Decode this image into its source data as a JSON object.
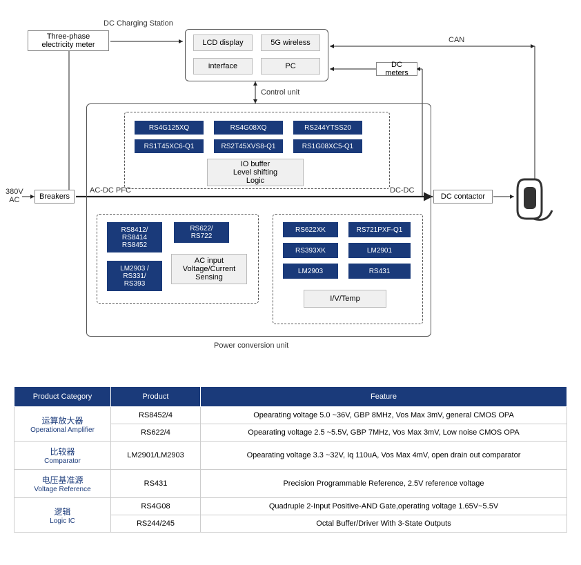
{
  "diagram": {
    "labels": {
      "dc_charging_station": "DC Charging Station",
      "control_unit": "Control unit",
      "power_conversion_unit": "Power conversion unit",
      "ac_dc_pfc": "AC-DC PFC",
      "dc_dc": "DC-DC",
      "can": "CAN",
      "380v_ac": "380V\nAC"
    },
    "nodes": {
      "three_phase": "Three-phase\nelectricity meter",
      "lcd": "LCD display",
      "wireless_5g": "5G wireless",
      "interface": "interface",
      "pc": "PC",
      "dc_meters": "DC meters",
      "breakers": "Breakers",
      "dc_contactor": "DC contactor",
      "io_buffer": "IO buffer\nLevel shifting\nLogic",
      "ac_sensing": "AC input\nVoltage/Current\nSensing",
      "ivtemp": "I/V/Temp"
    },
    "chips_logic": [
      "RS4G125XQ",
      "RS4G08XQ",
      "RS244YTSS20",
      "RS1T45XC6-Q1",
      "RS2T45XVS8-Q1",
      "RS1G08XC5-Q1"
    ],
    "chips_ac": [
      "RS8412/\nRS8414\nRS8452",
      "RS622/\nRS722",
      "LM2903 /\nRS331/\nRS393"
    ],
    "chips_dc": [
      "RS622XK",
      "RS721PXF-Q1",
      "RS393XK",
      "LM2901",
      "LM2903",
      "RS431"
    ],
    "colors": {
      "chip_bg": "#1a3a7a",
      "line": "#222222"
    }
  },
  "table": {
    "headers": [
      "Product Category",
      "Product",
      "Feature"
    ],
    "rows": [
      {
        "cat_cn": "运算放大器",
        "cat_en": "Operational Amplifier",
        "rowspan": 2,
        "product": "RS8452/4",
        "feature": "Opearating voltage 5.0 ~36V, GBP 8MHz,  Vos Max 3mV,  general CMOS OPA"
      },
      {
        "product": "RS622/4",
        "feature": "Opearating voltage 2.5 ~5.5V, GBP 7MHz,  Vos Max 3mV, Low noise CMOS OPA"
      },
      {
        "cat_cn": "比较器",
        "cat_en": "Comparator",
        "rowspan": 1,
        "product": "LM2901/LM2903",
        "feature": "Opearating voltage 3.3 ~32V, Iq 110uA,  Vos Max 4mV, open drain out comparator"
      },
      {
        "cat_cn": "电压基准源",
        "cat_en": "Voltage Reference",
        "rowspan": 1,
        "product": "RS431",
        "feature": "Precision Programmable Reference, 2.5V reference voltage"
      },
      {
        "cat_cn": "逻辑",
        "cat_en": "Logic IC",
        "rowspan": 2,
        "product": "RS4G08",
        "feature": "Quadruple 2-Input Positive-AND Gate,operating voltage 1.65V~5.5V"
      },
      {
        "product": "RS244/245",
        "feature": "Octal Buffer/Driver With 3-State Outputs"
      }
    ]
  }
}
